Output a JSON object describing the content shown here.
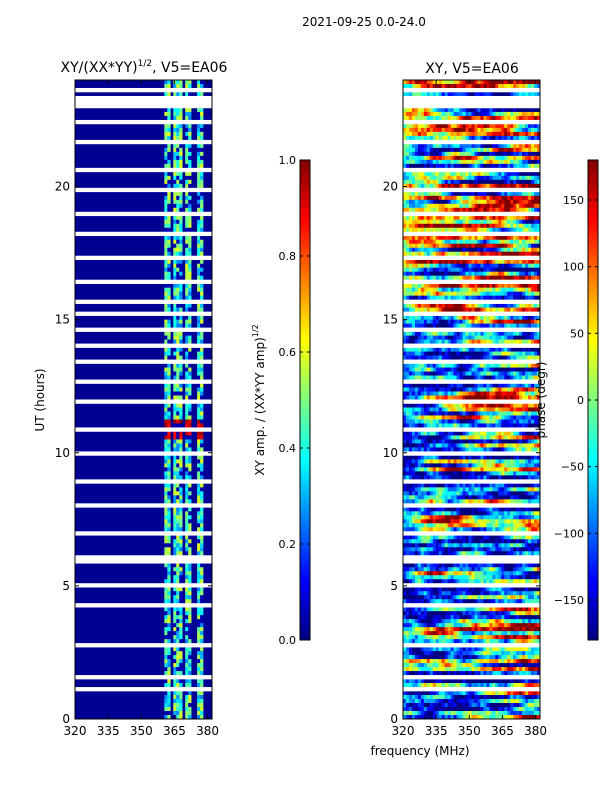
{
  "suptitle": "2021-09-25 0.0-24.0",
  "colors": {
    "jet": [
      "#00007f",
      "#0000ff",
      "#007fff",
      "#00ffff",
      "#7fff7f",
      "#ffff00",
      "#ff7f00",
      "#ff0000",
      "#7f0000"
    ]
  },
  "chart_data": [
    {
      "type": "heatmap",
      "title": "XY/(XX*YY)",
      "title_sup": "1/2",
      "title_suffix": ", V5=EA06",
      "xlabel": "",
      "ylabel": "UT (hours)",
      "xlim": [
        320,
        382
      ],
      "ylim": [
        0,
        24
      ],
      "xticks": [
        320,
        335,
        350,
        365,
        380
      ],
      "yticks": [
        0,
        5,
        10,
        15,
        20
      ],
      "zlim": [
        0,
        1
      ],
      "band_channels": [
        {
          "from": 360,
          "to": 363
        },
        {
          "from": 365,
          "to": 368
        },
        {
          "from": 370,
          "to": 373
        },
        {
          "from": 375,
          "to": 378
        }
      ],
      "bright_ut": [
        10.5,
        11.2
      ],
      "colorbar": {
        "label": "XY amp. / (XX*YY amp)",
        "label_sup": "1/2",
        "range": [
          0,
          1
        ],
        "ticks": [
          "0.0",
          "0.2",
          "0.4",
          "0.6",
          "0.8",
          "1.0"
        ]
      }
    },
    {
      "type": "heatmap",
      "title": "XY, V5=EA06",
      "xlabel": "frequency (MHz)",
      "ylabel": "",
      "xlim": [
        320,
        382
      ],
      "ylim": [
        0,
        24
      ],
      "xticks": [
        320,
        335,
        350,
        365,
        380
      ],
      "yticks": [
        0,
        5,
        10,
        15,
        20
      ],
      "zlim": [
        -180,
        180
      ],
      "colorbar": {
        "label": "phase (degr)",
        "range": [
          -180,
          180
        ],
        "ticks": [
          "−150",
          "−100",
          "−50",
          "0",
          "50",
          "100",
          "150"
        ]
      }
    }
  ]
}
